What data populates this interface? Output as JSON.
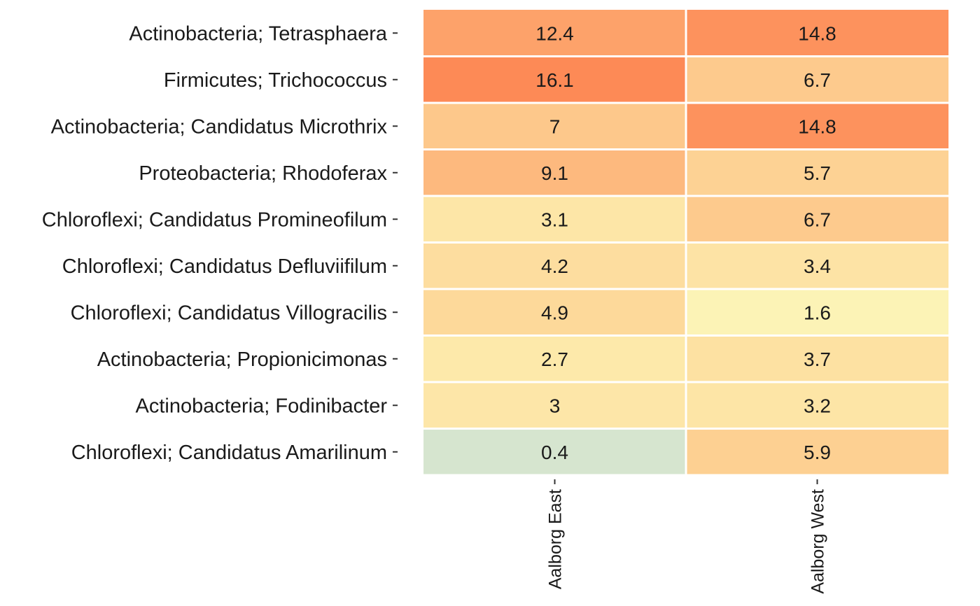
{
  "chart_data": {
    "type": "heatmap",
    "rows": [
      "Actinobacteria; Tetrasphaera",
      "Firmicutes; Trichococcus",
      "Actinobacteria; Candidatus Microthrix",
      "Proteobacteria; Rhodoferax",
      "Chloroflexi; Candidatus Promineofilum",
      "Chloroflexi; Candidatus Defluviifilum",
      "Chloroflexi; Candidatus Villogracilis",
      "Actinobacteria; Propionicimonas",
      "Actinobacteria; Fodinibacter",
      "Chloroflexi; Candidatus Amarilinum"
    ],
    "columns": [
      "Aalborg East",
      "Aalborg West"
    ],
    "values": [
      [
        12.4,
        14.8
      ],
      [
        16.1,
        6.7
      ],
      [
        7,
        14.8
      ],
      [
        9.1,
        5.7
      ],
      [
        3.1,
        6.7
      ],
      [
        4.2,
        3.4
      ],
      [
        4.9,
        1.6
      ],
      [
        2.7,
        3.7
      ],
      [
        3,
        3.2
      ],
      [
        0.4,
        5.9
      ]
    ],
    "value_labels": [
      [
        "12.4",
        "14.8"
      ],
      [
        "16.1",
        "6.7"
      ],
      [
        "7",
        "14.8"
      ],
      [
        "9.1",
        "5.7"
      ],
      [
        "3.1",
        "6.7"
      ],
      [
        "4.2",
        "3.4"
      ],
      [
        "4.9",
        "1.6"
      ],
      [
        "2.7",
        "3.7"
      ],
      [
        "3",
        "3.2"
      ],
      [
        "0.4",
        "5.9"
      ]
    ],
    "color_scale": [
      "#d6e5cf",
      "#fdf3b5",
      "#fdd99a",
      "#fdb57b",
      "#fd8a56"
    ],
    "color_scale_note": "low to high"
  }
}
